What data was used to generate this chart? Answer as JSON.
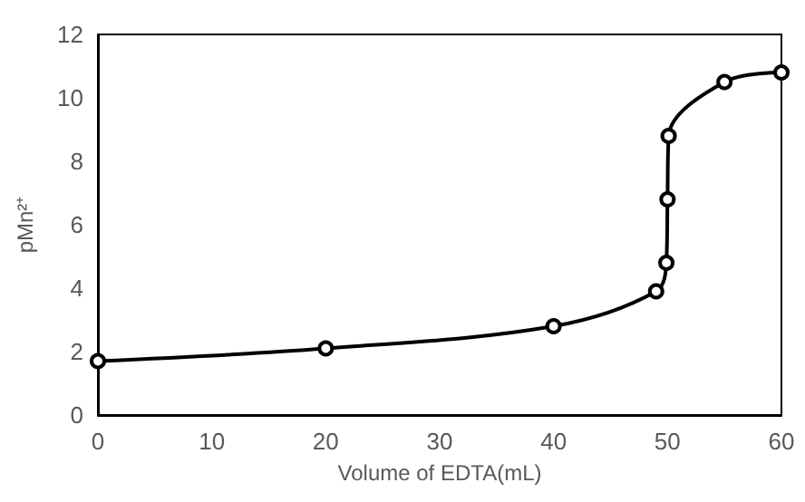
{
  "chart_data": {
    "type": "line",
    "xlabel": "Volume of EDTA(mL)",
    "ylabel": "pMn²⁺",
    "x": [
      0,
      20,
      40,
      49,
      49.9,
      50,
      50.1,
      55,
      60
    ],
    "series": [
      {
        "color": "#000000",
        "values": [
          1.7,
          2.1,
          2.8,
          3.9,
          4.8,
          6.8,
          8.8,
          10.5,
          10.8
        ]
      }
    ],
    "xlim": [
      0,
      60
    ],
    "xticks": [
      0,
      10,
      20,
      30,
      40,
      50,
      60
    ],
    "ylim": [
      0,
      12
    ],
    "yticks": [
      0,
      2,
      4,
      6,
      8,
      10,
      12
    ],
    "grid": false,
    "marker": "circle",
    "line_style": "solid"
  }
}
